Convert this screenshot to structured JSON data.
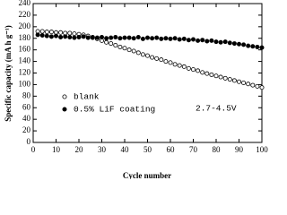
{
  "chart_data": {
    "type": "scatter",
    "x_label": "Cycle number",
    "y_label": "Specific capacity (mA h g⁻¹)",
    "annotation": "2.7-4.5V",
    "x": [
      2,
      4,
      6,
      8,
      10,
      12,
      14,
      16,
      18,
      20,
      22,
      24,
      26,
      28,
      30,
      32,
      34,
      36,
      38,
      40,
      42,
      44,
      46,
      48,
      50,
      52,
      54,
      56,
      58,
      60,
      62,
      64,
      66,
      68,
      70,
      72,
      74,
      76,
      78,
      80,
      82,
      84,
      86,
      88,
      90,
      92,
      94,
      96,
      98,
      100
    ],
    "series": [
      {
        "name": "blank",
        "color": "#000000",
        "filled": false,
        "values": [
          192,
          192,
          191,
          191,
          190,
          190,
          189,
          189,
          188,
          187,
          186,
          184,
          181,
          179,
          176,
          173,
          171,
          168,
          165,
          163,
          160,
          158,
          155,
          152,
          150,
          147,
          145,
          143,
          140,
          138,
          135,
          133,
          131,
          128,
          126,
          124,
          121,
          119,
          117,
          115,
          113,
          111,
          109,
          107,
          105,
          103,
          101,
          99,
          97,
          95
        ]
      },
      {
        "name": "0.5% LiF coating",
        "color": "#000000",
        "filled": true,
        "values": [
          186,
          185,
          184,
          183,
          184,
          182,
          183,
          182,
          181,
          182,
          183,
          181,
          182,
          181,
          182,
          180,
          181,
          182,
          180,
          181,
          181,
          180,
          182,
          179,
          181,
          180,
          181,
          179,
          180,
          179,
          180,
          178,
          179,
          177,
          178,
          176,
          177,
          175,
          176,
          174,
          173,
          174,
          172,
          171,
          170,
          169,
          167,
          166,
          165,
          164
        ]
      }
    ],
    "xlim": [
      0,
      100
    ],
    "xticks": [
      0,
      10,
      20,
      30,
      40,
      50,
      60,
      70,
      80,
      90,
      100
    ],
    "ylim": [
      0,
      240
    ],
    "yticks": [
      0,
      20,
      40,
      60,
      80,
      100,
      120,
      140,
      160,
      180,
      200,
      220,
      240
    ],
    "legend": "lower left"
  }
}
